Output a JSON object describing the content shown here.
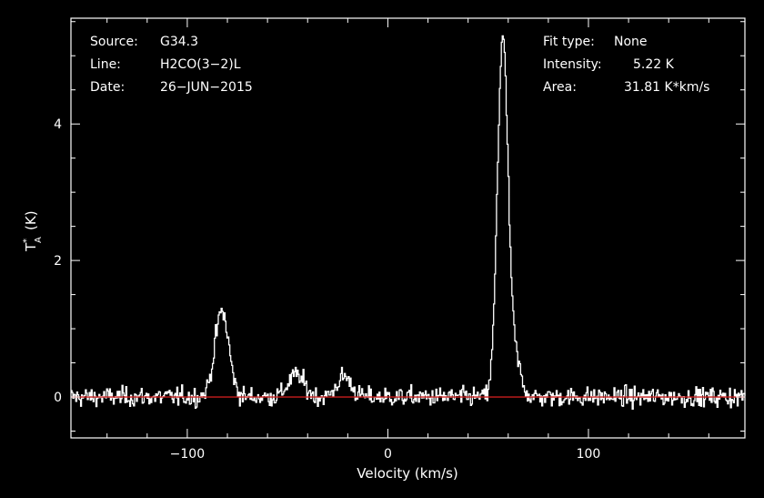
{
  "header": {
    "left": [
      {
        "label": "Source:",
        "value": "G34.3"
      },
      {
        "label": "Line:",
        "value": "H2CO(3−2)L"
      },
      {
        "label": "Date:",
        "value": "26−JUN−2015"
      }
    ],
    "right": [
      {
        "label": "Fit type:",
        "value": "None"
      },
      {
        "label": "Intensity:",
        "value": "5.22 K"
      },
      {
        "label": "Area:",
        "value": "31.81 K*km/s"
      }
    ]
  },
  "colors": {
    "background": "#000000",
    "spectrum": "#ffffff",
    "baseline": "#c81e1e",
    "axes": "#ffffff"
  },
  "chart_data": {
    "type": "line",
    "title": "",
    "xlabel": "Velocity (km/s)",
    "ylabel_main": "T",
    "ylabel_sup": "*",
    "ylabel_sub": "A",
    "ylabel_unit": "(K)",
    "xlim": [
      -158,
      178
    ],
    "ylim": [
      -0.6,
      5.55
    ],
    "xticks": [
      {
        "value": -100,
        "label": "−100"
      },
      {
        "value": 0,
        "label": "0"
      },
      {
        "value": 100,
        "label": "100"
      }
    ],
    "yticks": [
      {
        "value": 0,
        "label": "0"
      },
      {
        "value": 2,
        "label": "2"
      },
      {
        "value": 4,
        "label": "4"
      }
    ],
    "baseline": 0,
    "noise_rms": 0.07,
    "peaks": [
      {
        "center": 57.0,
        "height": 5.22,
        "width": 2.6
      },
      {
        "center": -83.0,
        "height": 1.25,
        "width": 3.5
      },
      {
        "center": -46.0,
        "height": 0.32,
        "width": 4.0
      },
      {
        "center": -22.0,
        "height": 0.3,
        "width": 3.5
      },
      {
        "center": 63.0,
        "height": 0.55,
        "width": 3.0
      }
    ]
  }
}
